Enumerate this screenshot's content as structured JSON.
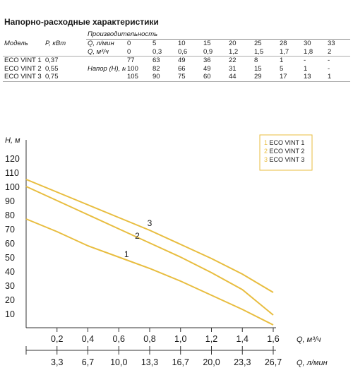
{
  "title": "Напорно-расходные характеристики",
  "table": {
    "header_group": "Производительность",
    "col_model": "Модель",
    "col_power": "P, кВт",
    "row_q_lmin_label": "Q, л/мин",
    "row_q_m3h_label": "Q, м³/ч",
    "head_label": "Напор (Н), м",
    "q_lmin": [
      "0",
      "5",
      "10",
      "15",
      "20",
      "25",
      "28",
      "30",
      "33"
    ],
    "q_m3h": [
      "0",
      "0,3",
      "0,6",
      "0,9",
      "1,2",
      "1,5",
      "1,7",
      "1,8",
      "2"
    ],
    "rows": [
      {
        "model": "ECO VINT 1",
        "power": "0,37",
        "head": [
          "77",
          "63",
          "49",
          "36",
          "22",
          "8",
          "1",
          "-",
          "-"
        ]
      },
      {
        "model": "ECO VINT 2",
        "power": "0,55",
        "head": [
          "100",
          "82",
          "66",
          "49",
          "31",
          "15",
          "5",
          "1",
          "-"
        ]
      },
      {
        "model": "ECO VINT 3",
        "power": "0,75",
        "head": [
          "105",
          "90",
          "75",
          "60",
          "44",
          "29",
          "17",
          "13",
          "1"
        ]
      }
    ]
  },
  "chart_data": {
    "type": "line",
    "ylabel": "H, м",
    "xlabel": "Q, м³/ч",
    "xlabel2": "Q, л/мин",
    "xlim": [
      0,
      1.6
    ],
    "ylim": [
      0,
      120
    ],
    "yticks": [
      "10",
      "20",
      "30",
      "40",
      "50",
      "60",
      "70",
      "80",
      "90",
      "100",
      "110",
      "120"
    ],
    "xticks": [
      "0,2",
      "0,4",
      "0,6",
      "0,8",
      "1,0",
      "1,2",
      "1,4",
      "1,6"
    ],
    "xticks2": [
      "3,3",
      "6,7",
      "10,0",
      "13,3",
      "16,7",
      "20,0",
      "23,3",
      "26,7"
    ],
    "grid": false,
    "legend_placement": "top-right",
    "line_color": "#e8bd3f",
    "series": [
      {
        "name": "1 ECO VINT 1",
        "num": "1",
        "label_at": [
          0.65,
          50
        ],
        "x": [
          0,
          0.2,
          0.4,
          0.6,
          0.8,
          1.0,
          1.2,
          1.4,
          1.6
        ],
        "y": [
          77,
          68,
          58,
          50,
          42,
          33,
          23,
          13,
          2
        ]
      },
      {
        "name": "2 ECO VINT 2",
        "num": "2",
        "label_at": [
          0.72,
          63
        ],
        "x": [
          0,
          0.2,
          0.4,
          0.6,
          0.8,
          1.0,
          1.2,
          1.4,
          1.6
        ],
        "y": [
          100,
          90,
          80,
          70,
          60,
          50,
          39,
          27,
          9
        ]
      },
      {
        "name": "3 ECO VINT 3",
        "num": "3",
        "label_at": [
          0.8,
          72
        ],
        "x": [
          0,
          0.2,
          0.4,
          0.6,
          0.8,
          1.0,
          1.2,
          1.4,
          1.6
        ],
        "y": [
          105,
          96,
          87,
          78,
          69,
          59,
          49,
          38,
          25
        ]
      }
    ]
  }
}
